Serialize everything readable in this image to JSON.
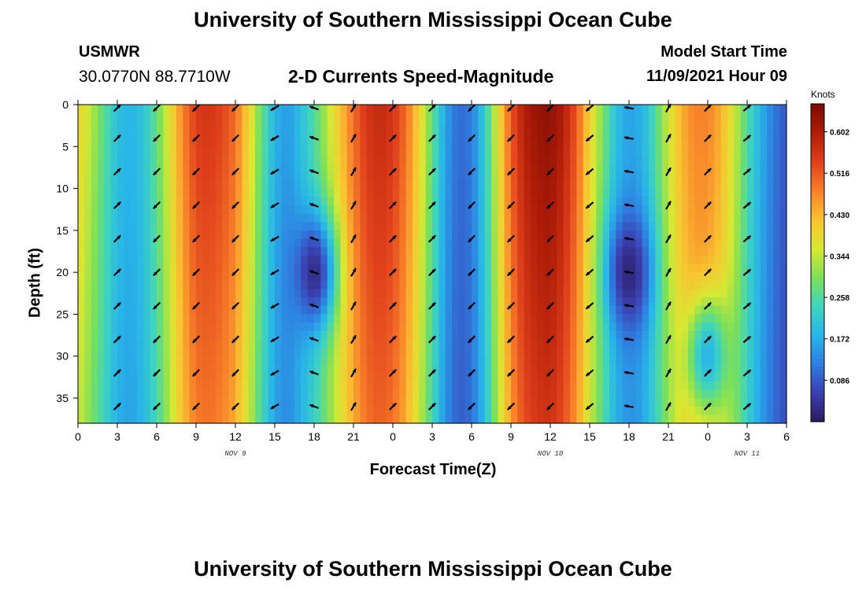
{
  "page": {
    "title": "University of Southern Mississippi Ocean Cube",
    "station": "USMWR",
    "coords": "30.0770N  88.7710W",
    "subtitle": "2-D Currents Speed-Magnitude",
    "model_start_label": "Model Start Time",
    "model_start_value": "11/09/2021 Hour 09",
    "units": "Knots",
    "footer_title": "University of Southern Mississippi Ocean Cube"
  },
  "chart_data": {
    "type": "heatmap",
    "title": "2-D Currents Speed-Magnitude",
    "xlabel": "Forecast Time(Z)",
    "ylabel": "Depth (ft)",
    "x_tick_labels": [
      "0",
      "3",
      "6",
      "9",
      "12",
      "15",
      "18",
      "21",
      "0",
      "3",
      "6",
      "9",
      "12",
      "15",
      "18",
      "21",
      "0",
      "3",
      "6"
    ],
    "x_hours": [
      0,
      3,
      6,
      9,
      12,
      15,
      18,
      21,
      24,
      27,
      30,
      33,
      36,
      39,
      42,
      45,
      48,
      51,
      54
    ],
    "xlim": [
      0,
      54
    ],
    "date_labels": [
      {
        "text": "NOV 9",
        "hour": 12
      },
      {
        "text": "NOV 10",
        "hour": 36
      },
      {
        "text": "NOV 11",
        "hour": 51
      }
    ],
    "y_ticks": [
      0,
      5,
      10,
      15,
      20,
      25,
      30,
      35
    ],
    "ylim": [
      0,
      38
    ],
    "colorbar": {
      "label": "Knots",
      "min": 0.0,
      "max": 0.66,
      "ticks": [
        0.602,
        0.516,
        0.43,
        0.344,
        0.258,
        0.172,
        0.086
      ]
    },
    "colormap": [
      "#2a1a5e",
      "#3b3fb0",
      "#2f7de0",
      "#28b5e8",
      "#3fd4c0",
      "#7be05a",
      "#d8e833",
      "#f9c431",
      "#f8802a",
      "#e0401c",
      "#b01d08",
      "#7a0b02"
    ],
    "surface_speed_profile_hours": [
      0,
      1,
      2,
      3,
      4,
      5,
      6,
      7,
      8,
      9,
      10,
      11,
      12,
      13,
      14,
      15,
      16,
      17,
      18,
      19,
      20,
      21,
      22,
      23,
      24,
      25,
      26,
      27,
      28,
      29,
      30,
      31,
      32,
      33,
      34,
      35,
      36,
      37,
      38,
      39,
      40,
      41,
      42,
      43,
      44,
      45,
      46,
      47,
      48,
      49,
      50,
      51,
      52,
      53,
      54
    ],
    "surface_speed_profile": [
      0.4,
      0.34,
      0.27,
      0.2,
      0.18,
      0.21,
      0.28,
      0.38,
      0.48,
      0.55,
      0.56,
      0.54,
      0.5,
      0.4,
      0.28,
      0.18,
      0.15,
      0.2,
      0.26,
      0.34,
      0.42,
      0.5,
      0.56,
      0.58,
      0.56,
      0.5,
      0.4,
      0.28,
      0.16,
      0.1,
      0.12,
      0.22,
      0.38,
      0.52,
      0.6,
      0.63,
      0.64,
      0.6,
      0.52,
      0.4,
      0.3,
      0.2,
      0.16,
      0.18,
      0.26,
      0.36,
      0.44,
      0.48,
      0.48,
      0.44,
      0.36,
      0.26,
      0.18,
      0.12,
      0.08
    ],
    "depth_speed_profile": [
      {
        "hour": 18,
        "depth_ft": 20,
        "value": 0.03
      },
      {
        "hour": 42,
        "depth_ft": 20,
        "value": 0.02
      },
      {
        "hour": 48,
        "depth_ft": 30,
        "value": 0.18
      }
    ],
    "vector_hours": [
      3,
      6,
      9,
      12,
      15,
      18,
      21,
      24,
      27,
      30,
      33,
      36,
      39,
      42,
      45,
      48,
      51
    ],
    "vector_depths_ft": [
      0,
      4,
      8,
      12,
      16,
      20,
      24,
      28,
      32,
      36
    ],
    "vector_direction_deg_by_hour": [
      315,
      135,
      135,
      135,
      150,
      200,
      300,
      315,
      315,
      135,
      135,
      135,
      140,
      190,
      300,
      315,
      320
    ]
  }
}
